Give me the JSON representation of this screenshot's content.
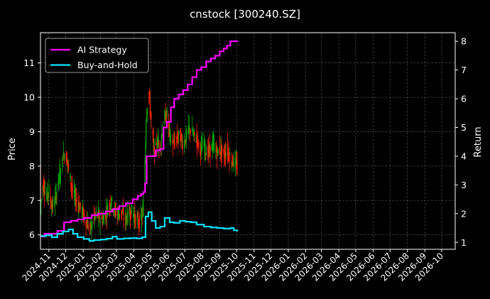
{
  "chart_data": {
    "type": "line",
    "title": "cnstock [300240.SZ]",
    "xlabel": "",
    "ylabel_left": "Price",
    "ylabel_right": "Return",
    "x_ticks": [
      "2024-11",
      "2024-12",
      "2025-01",
      "2025-02",
      "2025-03",
      "2025-04",
      "2025-05",
      "2025-06",
      "2025-07",
      "2025-08",
      "2025-09",
      "2025-10",
      "2025-11",
      "2025-12",
      "2026-01",
      "2026-02",
      "2026-03",
      "2026-04",
      "2026-05",
      "2026-06",
      "2026-07",
      "2026-08",
      "2026-09",
      "2026-10"
    ],
    "xlim": [
      "2024-10-17",
      "2026-10-25"
    ],
    "ylim_left": [
      5.58,
      11.88
    ],
    "y_ticks_left": [
      6,
      7,
      8,
      9,
      10,
      11
    ],
    "ylim_right": [
      0.76,
      8.3
    ],
    "y_ticks_right": [
      1,
      2,
      3,
      4,
      5,
      6,
      7,
      8
    ],
    "grid": true,
    "legend_position": "top-left",
    "candle_colors": {
      "up": "#00aa00",
      "down": "#ff2200"
    },
    "price_points": [
      [
        "2024-10-17",
        6.9
      ],
      [
        "2024-10-22",
        7.5
      ],
      [
        "2024-10-27",
        7.1
      ],
      [
        "2024-11-01",
        7.3
      ],
      [
        "2024-11-06",
        6.8
      ],
      [
        "2024-11-12",
        7.0
      ],
      [
        "2024-11-18",
        7.6
      ],
      [
        "2024-11-23",
        7.9
      ],
      [
        "2024-11-28",
        8.4
      ],
      [
        "2024-12-03",
        8.2
      ],
      [
        "2024-12-08",
        7.7
      ],
      [
        "2024-12-14",
        7.2
      ],
      [
        "2024-12-20",
        7.0
      ],
      [
        "2024-12-26",
        6.8
      ],
      [
        "2025-01-02",
        6.6
      ],
      [
        "2025-01-08",
        6.3
      ],
      [
        "2025-01-14",
        6.2
      ],
      [
        "2025-01-20",
        6.5
      ],
      [
        "2025-01-26",
        6.6
      ],
      [
        "2025-02-02",
        6.4
      ],
      [
        "2025-02-08",
        6.5
      ],
      [
        "2025-02-14",
        6.8
      ],
      [
        "2025-02-20",
        7.0
      ],
      [
        "2025-02-26",
        6.7
      ],
      [
        "2025-03-04",
        6.6
      ],
      [
        "2025-03-10",
        6.7
      ],
      [
        "2025-03-16",
        6.4
      ],
      [
        "2025-03-22",
        6.6
      ],
      [
        "2025-03-28",
        6.7
      ],
      [
        "2025-04-03",
        6.5
      ],
      [
        "2025-04-08",
        6.4
      ],
      [
        "2025-04-14",
        6.4
      ],
      [
        "2025-04-19",
        6.9
      ],
      [
        "2025-04-23",
        9.4
      ],
      [
        "2025-04-27",
        10.2
      ],
      [
        "2025-05-02",
        9.3
      ],
      [
        "2025-05-07",
        8.4
      ],
      [
        "2025-05-12",
        8.7
      ],
      [
        "2025-05-18",
        8.6
      ],
      [
        "2025-05-24",
        9.3
      ],
      [
        "2025-05-30",
        9.5
      ],
      [
        "2025-06-04",
        8.9
      ],
      [
        "2025-06-10",
        8.6
      ],
      [
        "2025-06-16",
        8.8
      ],
      [
        "2025-06-22",
        8.9
      ],
      [
        "2025-06-28",
        8.6
      ],
      [
        "2025-07-04",
        8.9
      ],
      [
        "2025-07-10",
        9.1
      ],
      [
        "2025-07-16",
        8.9
      ],
      [
        "2025-07-22",
        8.8
      ],
      [
        "2025-07-28",
        8.5
      ],
      [
        "2025-08-03",
        8.6
      ],
      [
        "2025-08-09",
        8.4
      ],
      [
        "2025-08-15",
        8.5
      ],
      [
        "2025-08-21",
        8.6
      ],
      [
        "2025-08-27",
        8.4
      ],
      [
        "2025-09-02",
        8.5
      ],
      [
        "2025-09-08",
        8.3
      ],
      [
        "2025-09-14",
        8.5
      ],
      [
        "2025-09-20",
        8.2
      ],
      [
        "2025-09-26",
        8.1
      ],
      [
        "2025-10-02",
        8.0
      ]
    ],
    "series": [
      {
        "name": "AI Strategy",
        "color": "#ff00ff",
        "points": [
          [
            "2024-10-17",
            1.2
          ],
          [
            "2024-10-24",
            1.3
          ],
          [
            "2024-11-05",
            1.3
          ],
          [
            "2024-11-16",
            1.4
          ],
          [
            "2024-11-28",
            1.7
          ],
          [
            "2024-12-10",
            1.75
          ],
          [
            "2024-12-22",
            1.8
          ],
          [
            "2025-01-03",
            1.85
          ],
          [
            "2025-01-16",
            1.95
          ],
          [
            "2025-01-28",
            2.0
          ],
          [
            "2025-02-10",
            2.08
          ],
          [
            "2025-02-22",
            2.16
          ],
          [
            "2025-03-06",
            2.26
          ],
          [
            "2025-03-18",
            2.36
          ],
          [
            "2025-03-30",
            2.5
          ],
          [
            "2025-04-08",
            2.62
          ],
          [
            "2025-04-14",
            2.68
          ],
          [
            "2025-04-18",
            2.75
          ],
          [
            "2025-04-21",
            3.05
          ],
          [
            "2025-04-24",
            4.0
          ],
          [
            "2025-05-03",
            4.0
          ],
          [
            "2025-05-10",
            4.2
          ],
          [
            "2025-05-18",
            4.25
          ],
          [
            "2025-05-24",
            5.0
          ],
          [
            "2025-05-30",
            5.2
          ],
          [
            "2025-06-06",
            5.7
          ],
          [
            "2025-06-12",
            6.0
          ],
          [
            "2025-06-20",
            6.15
          ],
          [
            "2025-06-28",
            6.3
          ],
          [
            "2025-07-06",
            6.5
          ],
          [
            "2025-07-14",
            6.75
          ],
          [
            "2025-07-22",
            7.0
          ],
          [
            "2025-07-30",
            7.1
          ],
          [
            "2025-08-08",
            7.3
          ],
          [
            "2025-08-16",
            7.4
          ],
          [
            "2025-08-24",
            7.5
          ],
          [
            "2025-09-01",
            7.65
          ],
          [
            "2025-09-08",
            7.75
          ],
          [
            "2025-09-14",
            7.85
          ],
          [
            "2025-09-20",
            8.0
          ],
          [
            "2025-10-02",
            7.97
          ]
        ]
      },
      {
        "name": "Buy-and-Hold",
        "color": "#00e5ff",
        "points": [
          [
            "2024-10-17",
            1.22
          ],
          [
            "2024-10-27",
            1.25
          ],
          [
            "2024-11-06",
            1.18
          ],
          [
            "2024-11-16",
            1.3
          ],
          [
            "2024-11-26",
            1.38
          ],
          [
            "2024-12-06",
            1.45
          ],
          [
            "2024-12-14",
            1.3
          ],
          [
            "2024-12-22",
            1.18
          ],
          [
            "2025-01-02",
            1.12
          ],
          [
            "2025-01-12",
            1.05
          ],
          [
            "2025-01-20",
            1.08
          ],
          [
            "2025-02-01",
            1.1
          ],
          [
            "2025-02-12",
            1.13
          ],
          [
            "2025-02-22",
            1.2
          ],
          [
            "2025-03-02",
            1.12
          ],
          [
            "2025-03-14",
            1.14
          ],
          [
            "2025-03-26",
            1.15
          ],
          [
            "2025-04-06",
            1.14
          ],
          [
            "2025-04-16",
            1.18
          ],
          [
            "2025-04-22",
            1.9
          ],
          [
            "2025-04-27",
            2.05
          ],
          [
            "2025-05-03",
            1.75
          ],
          [
            "2025-05-10",
            1.5
          ],
          [
            "2025-05-18",
            1.55
          ],
          [
            "2025-05-26",
            1.85
          ],
          [
            "2025-06-04",
            1.7
          ],
          [
            "2025-06-12",
            1.68
          ],
          [
            "2025-06-22",
            1.75
          ],
          [
            "2025-07-02",
            1.72
          ],
          [
            "2025-07-12",
            1.7
          ],
          [
            "2025-07-22",
            1.62
          ],
          [
            "2025-08-04",
            1.55
          ],
          [
            "2025-08-16",
            1.52
          ],
          [
            "2025-08-28",
            1.5
          ],
          [
            "2025-09-08",
            1.48
          ],
          [
            "2025-09-20",
            1.5
          ],
          [
            "2025-09-26",
            1.42
          ],
          [
            "2025-10-02",
            1.38
          ]
        ]
      }
    ]
  }
}
